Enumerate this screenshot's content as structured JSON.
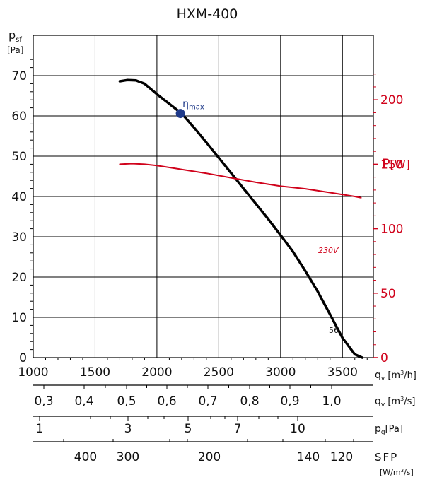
{
  "chart_data": {
    "type": "line",
    "title": "HXM-400",
    "y_left": {
      "label_main": "p",
      "label_sub": "sf",
      "unit": "[Pa]",
      "ticks": [
        0,
        10,
        20,
        30,
        40,
        50,
        60,
        70
      ],
      "range": [
        0,
        80
      ]
    },
    "y_right": {
      "label_main": "P",
      "unit": "[W]",
      "ticks": [
        0,
        50,
        100,
        150,
        200
      ],
      "range": [
        0,
        200
      ]
    },
    "x_main": {
      "label_main": "q",
      "label_sub": "v",
      "unit_pre": " [m",
      "unit_sup": "3",
      "unit_post": "/h]",
      "ticks": [
        1000,
        1500,
        2000,
        2500,
        3000,
        3500
      ],
      "range": [
        1000,
        3750
      ],
      "grid": true
    },
    "aux_scales": [
      {
        "label_main": "q",
        "label_sub": "v",
        "unit_pre": " [m",
        "unit_sup": "3",
        "unit_post": "/s]",
        "ticks": [
          {
            "label": "0,3",
            "value": 0.3
          },
          {
            "label": "0,4",
            "value": 0.4
          },
          {
            "label": "0,5",
            "value": 0.5
          },
          {
            "label": "0,6",
            "value": 0.6
          },
          {
            "label": "0,7",
            "value": 0.7
          },
          {
            "label": "0,8",
            "value": 0.8
          },
          {
            "label": "0,9",
            "value": 0.9
          },
          {
            "label": "1,0",
            "value": 1.0
          }
        ]
      },
      {
        "label_main": "p",
        "label_sub": "g",
        "unit_post": "[Pa]",
        "ticks": [
          {
            "label": "1",
            "value": 1
          },
          {
            "label": "3",
            "value": 3
          },
          {
            "label": "5",
            "value": 5
          },
          {
            "label": "7",
            "value": 7
          },
          {
            "label": "10",
            "value": 10
          }
        ]
      },
      {
        "label_main": "SFP",
        "unit_pre": "[W/m",
        "unit_sup": "3",
        "unit_post": "/s]",
        "ticks": [
          {
            "label": "400",
            "value": 400
          },
          {
            "label": "300",
            "value": 300
          },
          {
            "label": "200",
            "value": 200
          },
          {
            "label": "140",
            "value": 140
          },
          {
            "label": "120",
            "value": 120
          }
        ]
      }
    ],
    "series": [
      {
        "label": "56",
        "axis": "left",
        "color": "#000000",
        "x": [
          1700,
          1760,
          1830,
          1900,
          2000,
          2100,
          2200,
          2300,
          2400,
          2500,
          2600,
          2700,
          2800,
          2900,
          3000,
          3100,
          3200,
          3300,
          3400,
          3500,
          3600,
          3660
        ],
        "y": [
          68.6,
          68.9,
          68.8,
          68.0,
          65.4,
          63.0,
          60.6,
          57.1,
          53.4,
          49.6,
          45.8,
          42.0,
          38.2,
          34.4,
          30.4,
          26.3,
          21.5,
          16.4,
          10.7,
          4.9,
          0.8,
          0
        ]
      },
      {
        "label": "230V",
        "axis": "right",
        "color": "#d0021b",
        "x": [
          1700,
          1800,
          1900,
          2000,
          2200,
          2400,
          2600,
          2800,
          3000,
          3200,
          3400,
          3600,
          3650
        ],
        "y": [
          150,
          150.5,
          150,
          149,
          146,
          143,
          139.5,
          136,
          133,
          131,
          128,
          125,
          124
        ]
      }
    ],
    "annotations": [
      {
        "text_main": "η",
        "text_sub": "max",
        "x": 2190,
        "y": 60.6,
        "color": "#1f3a8a"
      }
    ]
  }
}
